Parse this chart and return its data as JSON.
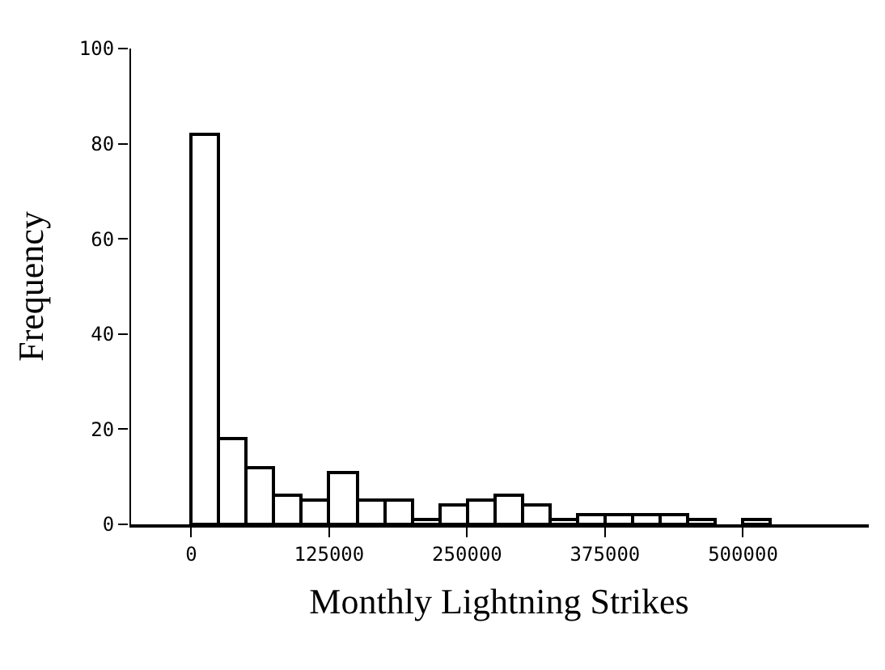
{
  "chart_data": {
    "type": "histogram",
    "xlabel": "Monthly Lightning Strikes",
    "ylabel": "Frequency",
    "bins": [
      0,
      25000,
      50000,
      75000,
      100000,
      125000,
      150000,
      175000,
      200000,
      225000,
      250000,
      275000,
      300000,
      325000,
      350000,
      375000,
      400000,
      425000,
      450000,
      475000,
      500000,
      525000
    ],
    "values": [
      82,
      18,
      12,
      6,
      5,
      11,
      5,
      5,
      1,
      4,
      5,
      6,
      4,
      1,
      2,
      2,
      2,
      2,
      1,
      0,
      1
    ],
    "color": "#ffffff",
    "xlim": [
      -56000,
      614000
    ],
    "ylim": [
      0,
      100
    ],
    "xticks": [
      0,
      125000,
      250000,
      375000,
      500000
    ],
    "yticks": [
      0,
      20,
      40,
      60,
      80,
      100
    ]
  }
}
